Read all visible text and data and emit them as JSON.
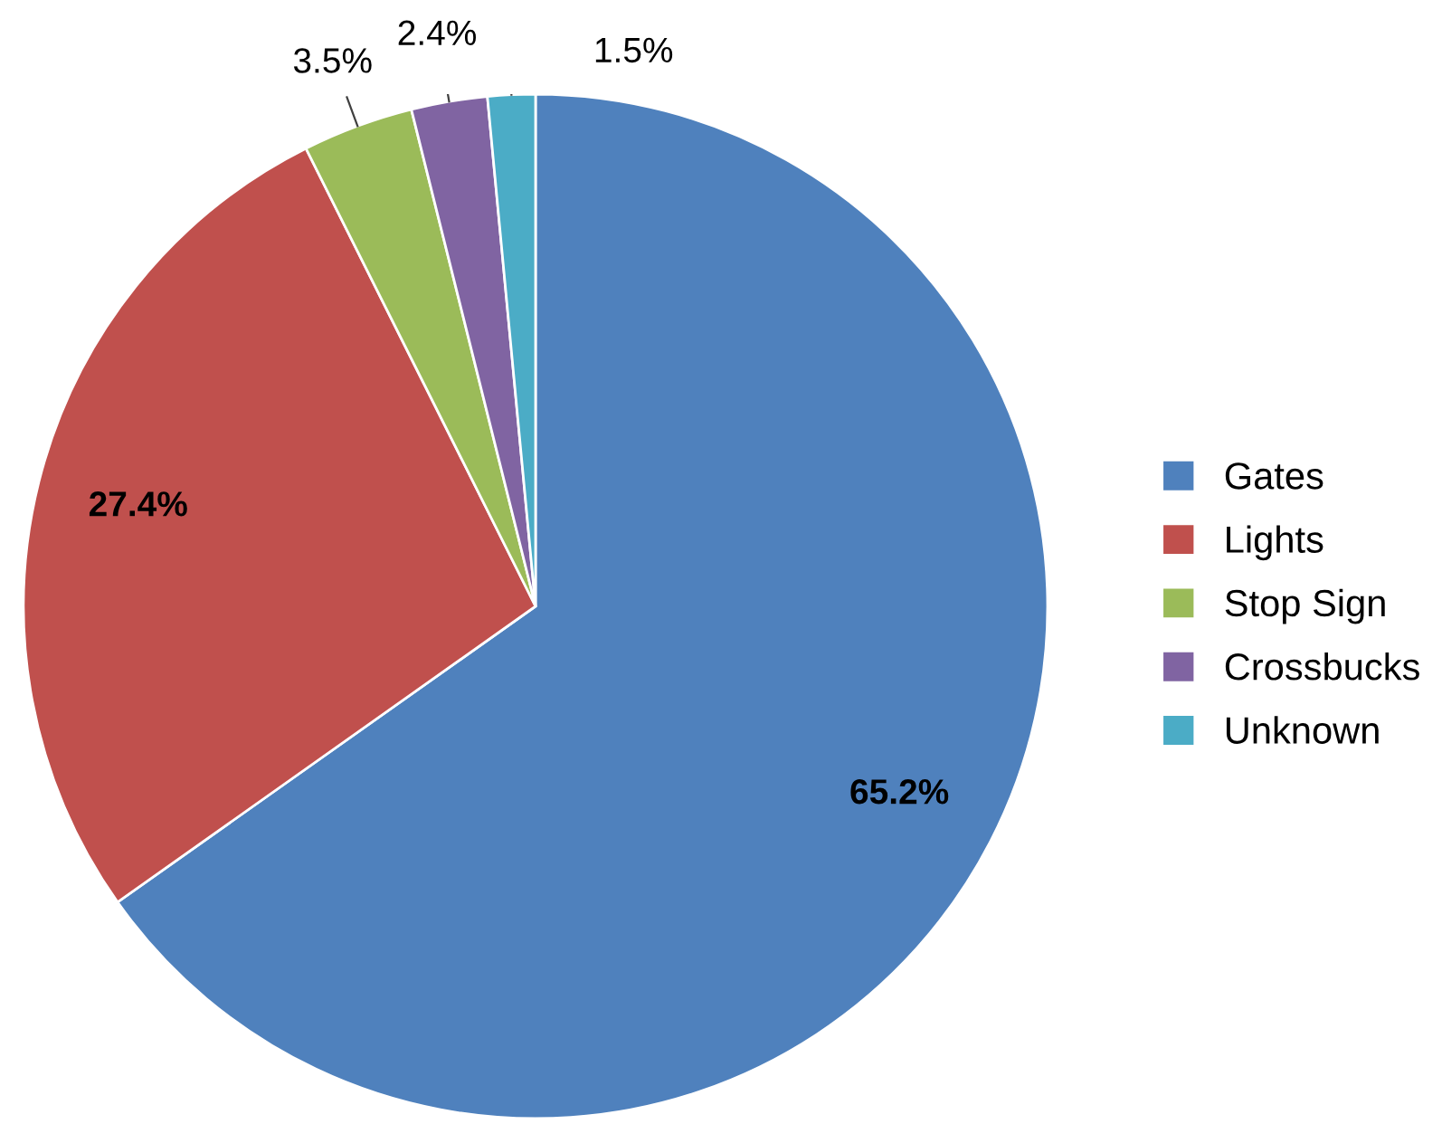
{
  "chart_data": {
    "type": "pie",
    "categories": [
      "Gates",
      "Lights",
      "Stop Sign",
      "Crossbucks",
      "Unknown"
    ],
    "values": [
      65.2,
      27.4,
      3.5,
      2.4,
      1.5
    ],
    "colors": [
      "#4f81bd",
      "#c0504d",
      "#9bbb59",
      "#8064a2",
      "#4bacc6"
    ],
    "value_labels": [
      "65.2%",
      "27.4%",
      "3.5%",
      "2.4%",
      "1.5%"
    ],
    "legend": "right"
  }
}
